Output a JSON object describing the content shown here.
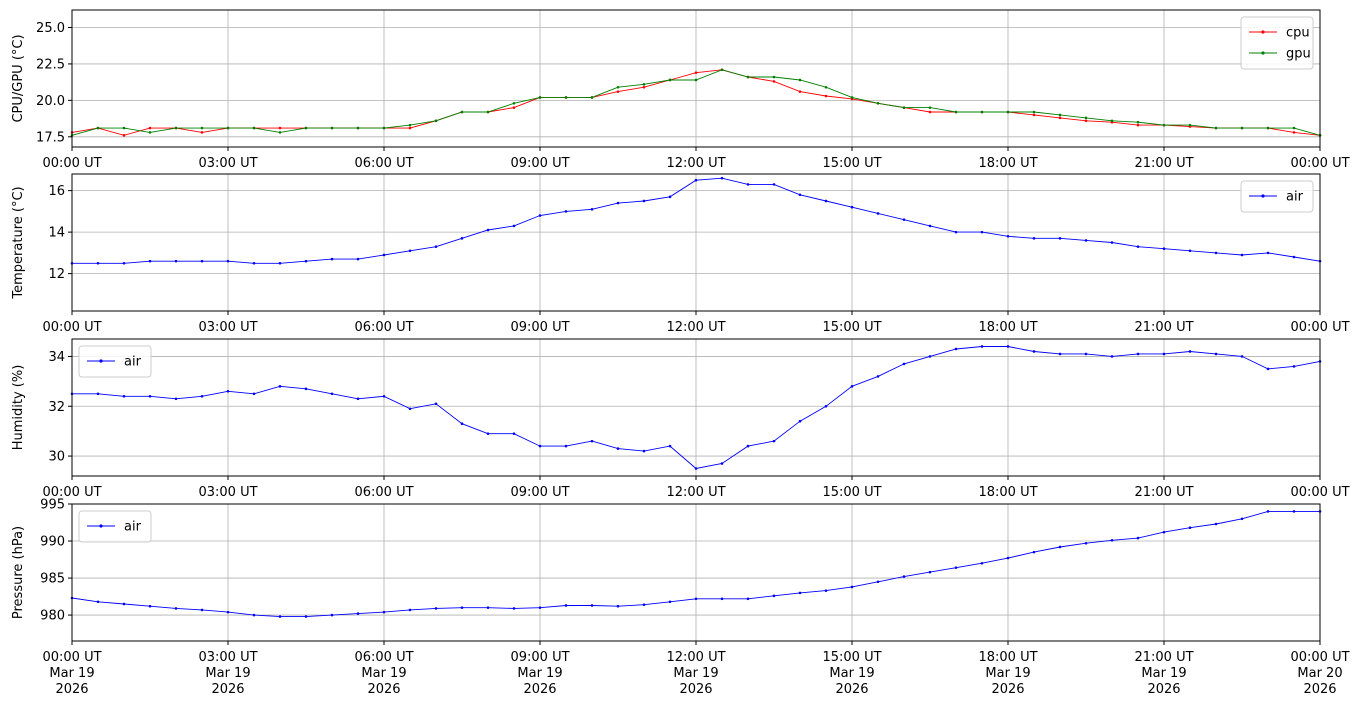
{
  "chart_data": [
    {
      "type": "line",
      "ylabel": "CPU/GPU (°C)",
      "xlabel": "",
      "ylim": [
        16.8,
        26.2
      ],
      "yticks": [
        17.5,
        20.0,
        22.5,
        25.0
      ],
      "x_ticks": [
        "00:00 UT",
        "03:00 UT",
        "06:00 UT",
        "09:00 UT",
        "12:00 UT",
        "15:00 UT",
        "18:00 UT",
        "21:00 UT",
        "00:00 UT"
      ],
      "xlim_hours": [
        0,
        24
      ],
      "grid": true,
      "legend": "upper right",
      "series": [
        {
          "name": "cpu",
          "color": "#ff0000",
          "x_hours": [
            0,
            0.5,
            1.0,
            1.5,
            2.0,
            2.5,
            3.0,
            3.5,
            4.0,
            4.5,
            5.0,
            5.5,
            6.0,
            6.5,
            7.0,
            7.5,
            8.0,
            8.5,
            9.0,
            9.5,
            10.0,
            10.5,
            11.0,
            11.5,
            12.0,
            12.5,
            13.0,
            13.5,
            14.0,
            14.5,
            15.0,
            15.5,
            16.0,
            16.5,
            17.0,
            17.5,
            18.0,
            18.5,
            19.0,
            19.5,
            20.0,
            20.5,
            21.0,
            21.5,
            22.0,
            22.5,
            23.0,
            23.5,
            24.0
          ],
          "values": [
            17.8,
            18.1,
            17.6,
            18.1,
            18.1,
            17.8,
            18.1,
            18.1,
            18.1,
            18.1,
            18.1,
            18.1,
            18.1,
            18.1,
            18.6,
            19.2,
            19.2,
            19.5,
            20.2,
            20.2,
            20.2,
            20.6,
            20.9,
            21.4,
            21.9,
            22.1,
            21.6,
            21.3,
            20.6,
            20.3,
            20.1,
            19.8,
            19.5,
            19.2,
            19.2,
            19.2,
            19.2,
            19.0,
            18.8,
            18.6,
            18.5,
            18.3,
            18.3,
            18.2,
            18.1,
            18.1,
            18.1,
            17.8,
            17.6
          ]
        },
        {
          "name": "gpu",
          "color": "#008000",
          "x_hours": [
            0,
            0.5,
            1.0,
            1.5,
            2.0,
            2.5,
            3.0,
            3.5,
            4.0,
            4.5,
            5.0,
            5.5,
            6.0,
            6.5,
            7.0,
            7.5,
            8.0,
            8.5,
            9.0,
            9.5,
            10.0,
            10.5,
            11.0,
            11.5,
            12.0,
            12.5,
            13.0,
            13.5,
            14.0,
            14.5,
            15.0,
            15.5,
            16.0,
            16.5,
            17.0,
            17.5,
            18.0,
            18.5,
            19.0,
            19.5,
            20.0,
            20.5,
            21.0,
            21.5,
            22.0,
            22.5,
            23.0,
            23.5,
            24.0
          ],
          "values": [
            17.6,
            18.1,
            18.1,
            17.8,
            18.1,
            18.1,
            18.1,
            18.1,
            17.8,
            18.1,
            18.1,
            18.1,
            18.1,
            18.3,
            18.6,
            19.2,
            19.2,
            19.8,
            20.2,
            20.2,
            20.2,
            20.9,
            21.1,
            21.4,
            21.4,
            22.1,
            21.6,
            21.6,
            21.4,
            20.9,
            20.2,
            19.8,
            19.5,
            19.5,
            19.2,
            19.2,
            19.2,
            19.2,
            19.0,
            18.8,
            18.6,
            18.5,
            18.3,
            18.3,
            18.1,
            18.1,
            18.1,
            18.1,
            17.6
          ]
        }
      ]
    },
    {
      "type": "line",
      "ylabel": "Temperature (°C)",
      "xlabel": "",
      "ylim": [
        10.2,
        16.8
      ],
      "yticks": [
        12,
        14,
        16
      ],
      "x_ticks": [
        "00:00 UT",
        "03:00 UT",
        "06:00 UT",
        "09:00 UT",
        "12:00 UT",
        "15:00 UT",
        "18:00 UT",
        "21:00 UT",
        "00:00 UT"
      ],
      "xlim_hours": [
        0,
        24
      ],
      "grid": true,
      "legend": "upper right",
      "series": [
        {
          "name": "air",
          "color": "#0000ff",
          "x_hours": [
            0,
            0.5,
            1.0,
            1.5,
            2.0,
            2.5,
            3.0,
            3.5,
            4.0,
            4.5,
            5.0,
            5.5,
            6.0,
            6.5,
            7.0,
            7.5,
            8.0,
            8.5,
            9.0,
            9.5,
            10.0,
            10.5,
            11.0,
            11.5,
            12.0,
            12.5,
            13.0,
            13.5,
            14.0,
            14.5,
            15.0,
            15.5,
            16.0,
            16.5,
            17.0,
            17.5,
            18.0,
            18.5,
            19.0,
            19.5,
            20.0,
            20.5,
            21.0,
            21.5,
            22.0,
            22.5,
            23.0,
            23.5,
            24.0
          ],
          "values": [
            12.5,
            12.5,
            12.5,
            12.6,
            12.6,
            12.6,
            12.6,
            12.5,
            12.5,
            12.6,
            12.7,
            12.7,
            12.9,
            13.1,
            13.3,
            13.7,
            14.1,
            14.3,
            14.8,
            15.0,
            15.1,
            15.4,
            15.5,
            15.7,
            16.5,
            16.6,
            16.3,
            16.3,
            15.8,
            15.5,
            15.2,
            14.9,
            14.6,
            14.3,
            14.0,
            14.0,
            13.8,
            13.7,
            13.7,
            13.6,
            13.5,
            13.3,
            13.2,
            13.1,
            13.0,
            12.9,
            13.0,
            12.8,
            12.6
          ]
        }
      ]
    },
    {
      "type": "line",
      "ylabel": "Humidity (%)",
      "xlabel": "",
      "ylim": [
        29.2,
        34.7
      ],
      "yticks": [
        30,
        32,
        34
      ],
      "x_ticks": [
        "00:00 UT",
        "03:00 UT",
        "06:00 UT",
        "09:00 UT",
        "12:00 UT",
        "15:00 UT",
        "18:00 UT",
        "21:00 UT",
        "00:00 UT"
      ],
      "xlim_hours": [
        0,
        24
      ],
      "grid": true,
      "legend": "upper left",
      "series": [
        {
          "name": "air",
          "color": "#0000ff",
          "x_hours": [
            0,
            0.5,
            1.0,
            1.5,
            2.0,
            2.5,
            3.0,
            3.5,
            4.0,
            4.5,
            5.0,
            5.5,
            6.0,
            6.5,
            7.0,
            7.5,
            8.0,
            8.5,
            9.0,
            9.5,
            10.0,
            10.5,
            11.0,
            11.5,
            12.0,
            12.5,
            13.0,
            13.5,
            14.0,
            14.5,
            15.0,
            15.5,
            16.0,
            16.5,
            17.0,
            17.5,
            18.0,
            18.5,
            19.0,
            19.5,
            20.0,
            20.5,
            21.0,
            21.5,
            22.0,
            22.5,
            23.0,
            23.5,
            24.0
          ],
          "values": [
            32.5,
            32.5,
            32.4,
            32.4,
            32.3,
            32.4,
            32.6,
            32.5,
            32.8,
            32.7,
            32.5,
            32.3,
            32.4,
            31.9,
            32.1,
            31.3,
            30.9,
            30.9,
            30.4,
            30.4,
            30.6,
            30.3,
            30.2,
            30.4,
            29.5,
            29.7,
            30.4,
            30.6,
            31.4,
            32.0,
            32.8,
            33.2,
            33.7,
            34.0,
            34.3,
            34.4,
            34.4,
            34.2,
            34.1,
            34.1,
            34.0,
            34.1,
            34.1,
            34.2,
            34.1,
            34.0,
            33.5,
            33.6,
            33.8
          ]
        }
      ]
    },
    {
      "type": "line",
      "ylabel": "Pressure (hPa)",
      "xlabel": "",
      "ylim": [
        976.5,
        995.0
      ],
      "yticks": [
        980,
        985,
        990,
        995
      ],
      "x_ticks": [
        "00:00 UT\nMar 19\n2026",
        "03:00 UT\nMar 19\n2026",
        "06:00 UT\nMar 19\n2026",
        "09:00 UT\nMar 19\n2026",
        "12:00 UT\nMar 19\n2026",
        "15:00 UT\nMar 19\n2026",
        "18:00 UT\nMar 19\n2026",
        "21:00 UT\nMar 19\n2026",
        "00:00 UT\nMar 20\n2026"
      ],
      "xlim_hours": [
        0,
        24
      ],
      "grid": true,
      "legend": "upper left",
      "series": [
        {
          "name": "air",
          "color": "#0000ff",
          "x_hours": [
            0,
            0.5,
            1.0,
            1.5,
            2.0,
            2.5,
            3.0,
            3.5,
            4.0,
            4.5,
            5.0,
            5.5,
            6.0,
            6.5,
            7.0,
            7.5,
            8.0,
            8.5,
            9.0,
            9.5,
            10.0,
            10.5,
            11.0,
            11.5,
            12.0,
            12.5,
            13.0,
            13.5,
            14.0,
            14.5,
            15.0,
            15.5,
            16.0,
            16.5,
            17.0,
            17.5,
            18.0,
            18.5,
            19.0,
            19.5,
            20.0,
            20.5,
            21.0,
            21.5,
            22.0,
            22.5,
            23.0,
            23.5,
            24.0
          ],
          "values": [
            982.3,
            981.8,
            981.5,
            981.2,
            980.9,
            980.7,
            980.4,
            980.0,
            979.8,
            979.8,
            980.0,
            980.2,
            980.4,
            980.7,
            980.9,
            981.0,
            981.0,
            980.9,
            981.0,
            981.3,
            981.3,
            981.2,
            981.4,
            981.8,
            982.2,
            982.2,
            982.2,
            982.6,
            983.0,
            983.3,
            983.8,
            984.5,
            985.2,
            985.8,
            986.4,
            987.0,
            987.7,
            988.5,
            989.2,
            989.7,
            990.1,
            990.4,
            991.2,
            991.8,
            992.3,
            993.0,
            994.0,
            994.0,
            994.0
          ]
        }
      ]
    }
  ]
}
